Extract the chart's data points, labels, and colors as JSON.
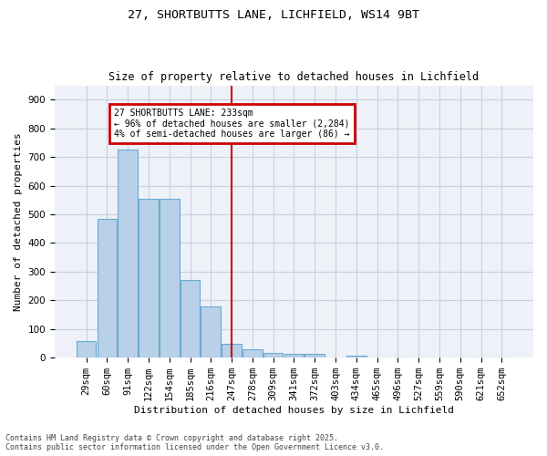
{
  "title_line1": "27, SHORTBUTTS LANE, LICHFIELD, WS14 9BT",
  "title_line2": "Size of property relative to detached houses in Lichfield",
  "xlabel": "Distribution of detached houses by size in Lichfield",
  "ylabel": "Number of detached properties",
  "footnote_line1": "Contains HM Land Registry data © Crown copyright and database right 2025.",
  "footnote_line2": "Contains public sector information licensed under the Open Government Licence v3.0.",
  "categories": [
    "29sqm",
    "60sqm",
    "91sqm",
    "122sqm",
    "154sqm",
    "185sqm",
    "216sqm",
    "247sqm",
    "278sqm",
    "309sqm",
    "341sqm",
    "372sqm",
    "403sqm",
    "434sqm",
    "465sqm",
    "496sqm",
    "527sqm",
    "559sqm",
    "590sqm",
    "621sqm",
    "652sqm"
  ],
  "values": [
    57,
    484,
    727,
    554,
    554,
    271,
    178,
    48,
    30,
    16,
    13,
    13,
    0,
    7,
    0,
    0,
    0,
    0,
    0,
    0,
    0
  ],
  "bar_color": "#b8d0e8",
  "bar_edge_color": "#6aaad4",
  "highlight_bar_index": 7,
  "vline_color": "#cc0000",
  "annotation_line1": "27 SHORTBUTTS LANE: 233sqm",
  "annotation_line2": "← 96% of detached houses are smaller (2,284)",
  "annotation_line3": "4% of semi-detached houses are larger (86) →",
  "annotation_box_edge_color": "#cc0000",
  "ylim": [
    0,
    950
  ],
  "yticks": [
    0,
    100,
    200,
    300,
    400,
    500,
    600,
    700,
    800,
    900
  ],
  "background_color": "#ffffff",
  "plot_bg_color": "#eef2f8",
  "grid_color": "#c8cfe0"
}
